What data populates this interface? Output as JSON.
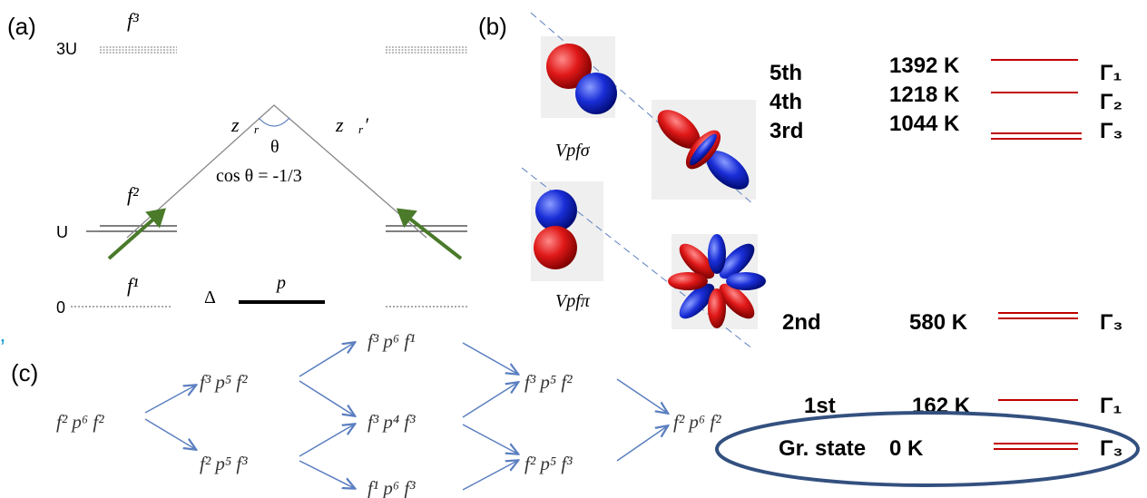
{
  "panel_a": {
    "label": "(a)",
    "level_3u": "3U",
    "level_u": "U",
    "level_0": "0",
    "f3": "f³",
    "f2": "f²",
    "f1": "f¹",
    "delta": "Δ",
    "p": "p",
    "z_left": "z⃗ᵣ",
    "z_right": "z⃗ᵣ′",
    "theta": "θ",
    "cos": "cos θ = -1/3"
  },
  "panel_b": {
    "label": "(b)",
    "v_sigma": "Vpfσ",
    "v_pi": "Vpfπ"
  },
  "stray_mark": "’",
  "panel_c": {
    "label": "(c)",
    "nodes": [
      "f² p⁶ f²",
      "f³ p⁵ f²",
      "f² p⁵ f³",
      "f³ p⁶ f¹",
      "f³ p⁴ f³",
      "f¹ p⁶ f³",
      "f³ p⁵ f²",
      "f² p⁵ f³",
      "f² p⁶ f²"
    ]
  },
  "levels": [
    {
      "name": "5th",
      "energy": "1392 K",
      "symmetry": "Γ₁"
    },
    {
      "name": "4th",
      "energy": "1218 K",
      "symmetry": "Γ₂"
    },
    {
      "name": "3rd",
      "energy": "1044 K",
      "symmetry": "Γ₃"
    },
    {
      "name": "2nd",
      "energy": "580 K",
      "symmetry": "Γ₃"
    },
    {
      "name": "1st",
      "energy": "162 K",
      "symmetry": "Γ₁"
    },
    {
      "name": "Gr. state",
      "energy": "0 K",
      "symmetry": "Γ₃"
    }
  ]
}
